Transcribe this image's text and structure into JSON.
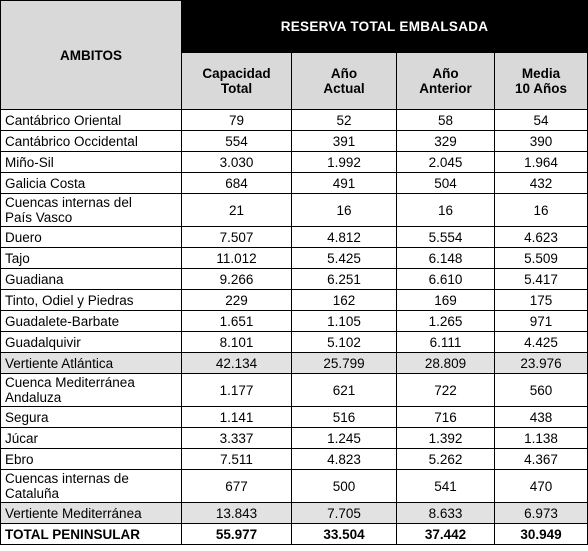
{
  "header": {
    "ambitos": "AMBITOS",
    "group": "RESERVA TOTAL EMBALSADA",
    "columns": [
      {
        "line1": "Capacidad",
        "line2": "Total"
      },
      {
        "line1": "Año",
        "line2": "Actual"
      },
      {
        "line1": "Año",
        "line2": "Anterior"
      },
      {
        "line1": "Media",
        "line2": "10 Años"
      }
    ]
  },
  "rows": [
    {
      "name": "Cantábrico Oriental",
      "values": [
        "79",
        "52",
        "58",
        "54"
      ]
    },
    {
      "name": "Cantábrico Occidental",
      "values": [
        "554",
        "391",
        "329",
        "390"
      ]
    },
    {
      "name": "Miño-Sil",
      "values": [
        "3.030",
        "1.992",
        "2.045",
        "1.964"
      ]
    },
    {
      "name": "Galicia Costa",
      "values": [
        "684",
        "491",
        "504",
        "432"
      ]
    },
    {
      "name_line1": "Cuencas internas del",
      "name_line2": "País Vasco",
      "values": [
        "21",
        "16",
        "16",
        "16"
      ]
    },
    {
      "name": "Duero",
      "values": [
        "7.507",
        "4.812",
        "5.554",
        "4.623"
      ]
    },
    {
      "name": "Tajo",
      "values": [
        "11.012",
        "5.425",
        "6.148",
        "5.509"
      ]
    },
    {
      "name": "Guadiana",
      "values": [
        "9.266",
        "6.251",
        "6.610",
        "5.417"
      ]
    },
    {
      "name": "Tinto, Odiel y Piedras",
      "values": [
        "229",
        "162",
        "169",
        "175"
      ]
    },
    {
      "name": "Guadalete-Barbate",
      "values": [
        "1.651",
        "1.105",
        "1.265",
        "971"
      ]
    },
    {
      "name": "Guadalquivir",
      "values": [
        "8.101",
        "5.102",
        "6.111",
        "4.425"
      ]
    },
    {
      "name": "Vertiente Atlántica",
      "values": [
        "42.134",
        "25.799",
        "28.809",
        "23.976"
      ]
    },
    {
      "name_line1": "Cuenca Mediterránea",
      "name_line2": "Andaluza",
      "values": [
        "1.177",
        "621",
        "722",
        "560"
      ]
    },
    {
      "name": "Segura",
      "values": [
        "1.141",
        "516",
        "716",
        "438"
      ]
    },
    {
      "name": "Júcar",
      "values": [
        "3.337",
        "1.245",
        "1.392",
        "1.138"
      ]
    },
    {
      "name": "Ebro",
      "values": [
        "7.511",
        "4.823",
        "5.262",
        "4.367"
      ]
    },
    {
      "name_line1": "Cuencas internas de",
      "name_line2": "Cataluña",
      "values": [
        "677",
        "500",
        "541",
        "470"
      ]
    },
    {
      "name": "Vertiente Mediterránea",
      "values": [
        "13.843",
        "7.705",
        "8.633",
        "6.973"
      ]
    },
    {
      "name": "TOTAL PENINSULAR",
      "values": [
        "55.977",
        "33.504",
        "37.442",
        "30.949"
      ]
    }
  ]
}
